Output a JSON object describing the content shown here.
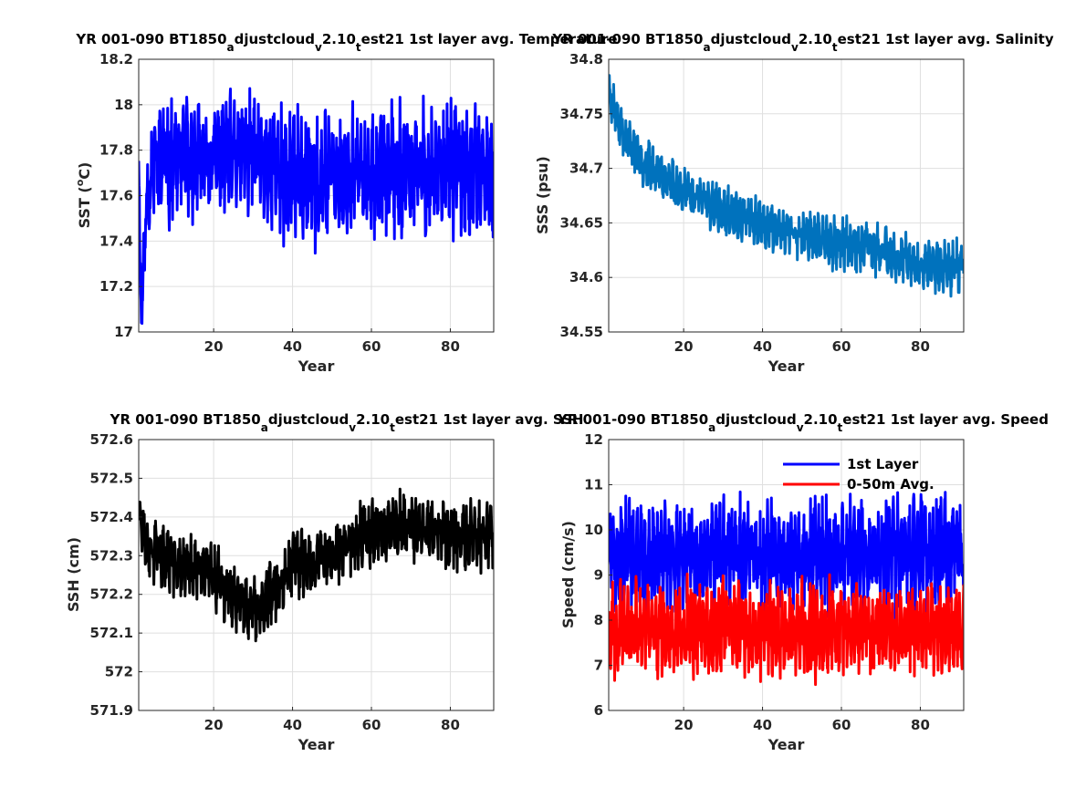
{
  "chart_data": [
    {
      "type": "line",
      "title_parts": [
        {
          "text": "YR 001-090 BT1850",
          "sub": false
        },
        {
          "text": "a",
          "sub": true
        },
        {
          "text": "djustcloud",
          "sub": false
        },
        {
          "text": "v",
          "sub": true
        },
        {
          "text": "2.10",
          "sub": false
        },
        {
          "text": "t",
          "sub": true
        },
        {
          "text": "est21 1st layer avg. Temperature",
          "sub": false
        }
      ],
      "xlabel": "Year",
      "ylabel": "SST (",
      "ylabel_sup": "o",
      "ylabel_tail": "C)",
      "xlim": [
        1,
        91
      ],
      "ylim": [
        17,
        18.2
      ],
      "xticks": [
        "20",
        "40",
        "60",
        "80"
      ],
      "xtick_values": [
        20,
        40,
        60,
        80
      ],
      "yticks": [
        "17",
        "17.2",
        "17.4",
        "17.6",
        "17.8",
        "18",
        "18.2"
      ],
      "ytick_values": [
        17,
        17.2,
        17.4,
        17.6,
        17.8,
        18,
        18.2
      ],
      "grid": true,
      "series": [
        {
          "color": "#0000ff",
          "trend": [
            [
              1,
              17.8
            ],
            [
              1.3,
              17.3
            ],
            [
              1.7,
              17.1
            ],
            [
              2.3,
              17.3
            ],
            [
              3,
              17.6
            ],
            [
              5,
              17.75
            ],
            [
              20,
              17.76
            ],
            [
              30,
              17.78
            ],
            [
              40,
              17.68
            ],
            [
              60,
              17.7
            ],
            [
              80,
              17.72
            ],
            [
              91,
              17.7
            ]
          ],
          "amp": [
            [
              1,
              0.1
            ],
            [
              5,
              0.22
            ],
            [
              30,
              0.22
            ],
            [
              40,
              0.26
            ],
            [
              60,
              0.24
            ],
            [
              91,
              0.24
            ]
          ],
          "seed": 11
        }
      ]
    },
    {
      "type": "line",
      "title_parts": [
        {
          "text": "YR 001-090 BT1850",
          "sub": false
        },
        {
          "text": "a",
          "sub": true
        },
        {
          "text": "djustcloud",
          "sub": false
        },
        {
          "text": "v",
          "sub": true
        },
        {
          "text": "2.10",
          "sub": false
        },
        {
          "text": "t",
          "sub": true
        },
        {
          "text": "est21 1st layer avg. Salinity",
          "sub": false
        }
      ],
      "xlabel": "Year",
      "ylabel": "SSS (psu)",
      "xlim": [
        1,
        91
      ],
      "ylim": [
        34.55,
        34.8
      ],
      "xticks": [
        "20",
        "40",
        "60",
        "80"
      ],
      "xtick_values": [
        20,
        40,
        60,
        80
      ],
      "yticks": [
        "34.55",
        "34.6",
        "34.65",
        "34.7",
        "34.75",
        "34.8"
      ],
      "ytick_values": [
        34.55,
        34.6,
        34.65,
        34.7,
        34.75,
        34.8
      ],
      "grid": true,
      "series": [
        {
          "color": "#0072bd",
          "trend": [
            [
              1,
              34.77
            ],
            [
              5,
              34.73
            ],
            [
              10,
              34.705
            ],
            [
              20,
              34.68
            ],
            [
              30,
              34.66
            ],
            [
              40,
              34.648
            ],
            [
              50,
              34.64
            ],
            [
              60,
              34.632
            ],
            [
              70,
              34.625
            ],
            [
              80,
              34.61
            ],
            [
              91,
              34.612
            ]
          ],
          "amp": [
            [
              1,
              0.018
            ],
            [
              91,
              0.02
            ]
          ],
          "seed": 23
        }
      ]
    },
    {
      "type": "line",
      "title_parts": [
        {
          "text": "YR 001-090 BT1850",
          "sub": false
        },
        {
          "text": "a",
          "sub": true
        },
        {
          "text": "djustcloud",
          "sub": false
        },
        {
          "text": "v",
          "sub": true
        },
        {
          "text": "2.10",
          "sub": false
        },
        {
          "text": "t",
          "sub": true
        },
        {
          "text": "est21 1st layer avg. SSH",
          "sub": false
        }
      ],
      "xlabel": "Year",
      "ylabel": "SSH (cm)",
      "xlim": [
        1,
        91
      ],
      "ylim": [
        571.9,
        572.6
      ],
      "xticks": [
        "20",
        "40",
        "60",
        "80"
      ],
      "xtick_values": [
        20,
        40,
        60,
        80
      ],
      "yticks": [
        "571.9",
        "572",
        "572.1",
        "572.2",
        "572.3",
        "572.4",
        "572.5",
        "572.6"
      ],
      "ytick_values": [
        571.9,
        572,
        572.1,
        572.2,
        572.3,
        572.4,
        572.5,
        572.6
      ],
      "grid": true,
      "series": [
        {
          "color": "#000000",
          "trend": [
            [
              1,
              572.43
            ],
            [
              3,
              572.33
            ],
            [
              10,
              572.28
            ],
            [
              20,
              572.25
            ],
            [
              30,
              572.15
            ],
            [
              35,
              572.2
            ],
            [
              40,
              572.28
            ],
            [
              50,
              572.3
            ],
            [
              60,
              572.37
            ],
            [
              70,
              572.37
            ],
            [
              80,
              572.36
            ],
            [
              91,
              572.35
            ]
          ],
          "amp": [
            [
              1,
              0.07
            ],
            [
              91,
              0.08
            ]
          ],
          "seed": 37
        }
      ]
    },
    {
      "type": "line",
      "title_parts": [
        {
          "text": "YR 001-090 BT1850",
          "sub": false
        },
        {
          "text": "a",
          "sub": true
        },
        {
          "text": "djustcloud",
          "sub": false
        },
        {
          "text": "v",
          "sub": true
        },
        {
          "text": "2.10",
          "sub": false
        },
        {
          "text": "t",
          "sub": true
        },
        {
          "text": "est21 1st layer avg. Speed",
          "sub": false
        }
      ],
      "xlabel": "Year",
      "ylabel": "Speed (cm/s)",
      "xlim": [
        1,
        91
      ],
      "ylim": [
        6,
        12
      ],
      "xticks": [
        "20",
        "40",
        "60",
        "80"
      ],
      "xtick_values": [
        20,
        40,
        60,
        80
      ],
      "yticks": [
        "6",
        "7",
        "8",
        "9",
        "10",
        "11",
        "12"
      ],
      "ytick_values": [
        6,
        7,
        8,
        9,
        10,
        11,
        12
      ],
      "grid": true,
      "legend": {
        "position": "top-right"
      },
      "series": [
        {
          "name": "1st Layer",
          "color": "#0000ff",
          "trend": [
            [
              1,
              9.4
            ],
            [
              91,
              9.5
            ]
          ],
          "amp": [
            [
              1,
              1.0
            ],
            [
              91,
              1.05
            ]
          ],
          "seed": 51
        },
        {
          "name": "0-50m Avg.",
          "color": "#ff0000",
          "trend": [
            [
              1,
              7.8
            ],
            [
              91,
              7.8
            ]
          ],
          "amp": [
            [
              1,
              0.85
            ],
            [
              91,
              0.85
            ]
          ],
          "seed": 67
        }
      ]
    }
  ]
}
